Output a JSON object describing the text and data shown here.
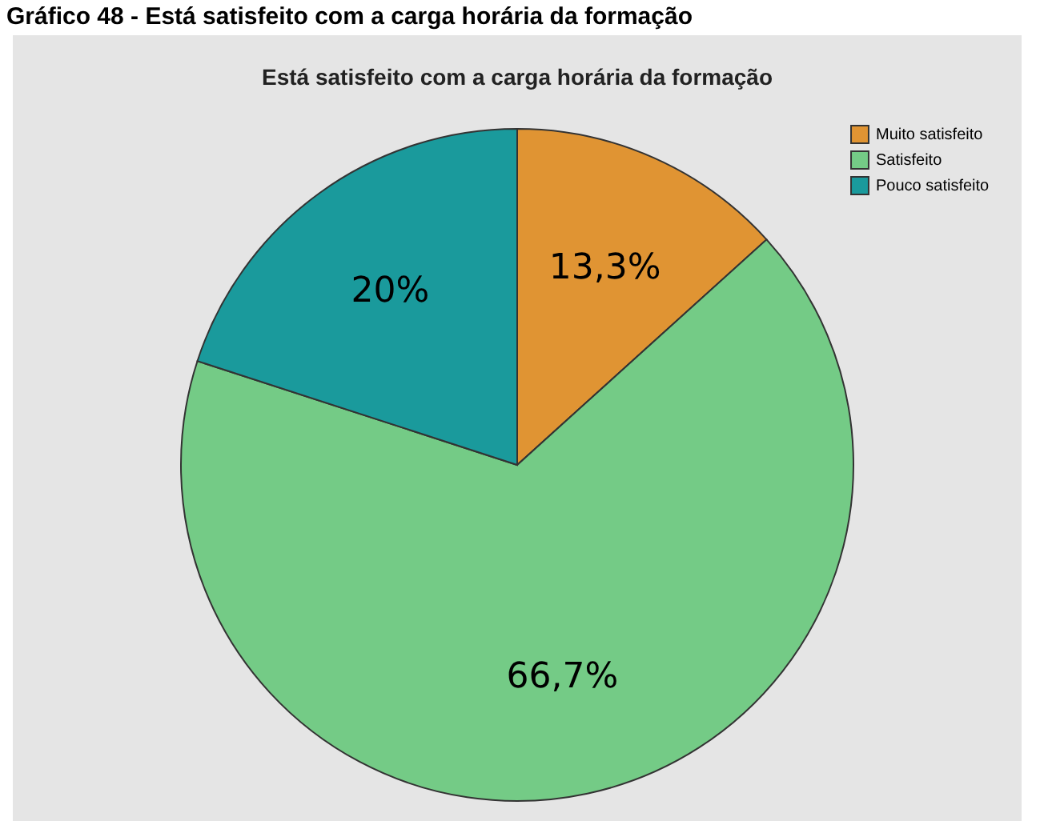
{
  "chart_data": {
    "type": "pie",
    "title": "Gráfico 48 - Está satisfeito com a carga horária da formação",
    "subtitle": "Está satisfeito com a carga horária da formação",
    "categories": [
      "Muito satisfeito",
      "Satisfeito",
      "Pouco satisfeito"
    ],
    "values": [
      13.3,
      66.7,
      20
    ],
    "colors": [
      "#e09433",
      "#74cb86",
      "#1a9a9c"
    ],
    "value_labels": [
      "13,3%",
      "66,7%",
      "20%"
    ],
    "legend": "top right"
  }
}
